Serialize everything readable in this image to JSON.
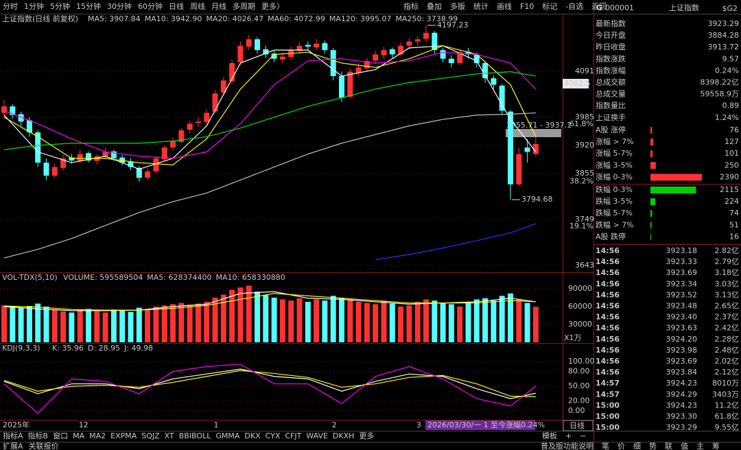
{
  "toolbar": {
    "periods": [
      "分时",
      "1分钟",
      "5分钟",
      "15分钟",
      "30分钟",
      "60分钟",
      "日线",
      "周线",
      "月线",
      "多周期",
      "更多〉"
    ],
    "active": "日线",
    "tools": [
      "指标",
      "叠加",
      "多版",
      "统计",
      "画线",
      "F10",
      "标记",
      "-自选",
      "返回"
    ]
  },
  "chart": {
    "title": "上证指数(日线 前复权)",
    "ma_legend": [
      {
        "label": "MA5: 3907.84",
        "color": "#ffffff"
      },
      {
        "label": "MA10: 3942.90",
        "color": "#ffff00"
      },
      {
        "label": "MA20: 4026.47",
        "color": "#ff00ff"
      },
      {
        "label": "MA60: 4072.99",
        "color": "#00e600"
      },
      {
        "label": "MA120: 3995.07",
        "color": "#c0c0c0"
      },
      {
        "label": "MA250: 3738.99",
        "color": "#3030ff"
      }
    ],
    "ylim": [
      3630,
      4224
    ],
    "yticks": [
      4091,
      3985,
      3920,
      3855,
      3749,
      3643
    ],
    "fib": [
      {
        "value": 3969,
        "label": "61.8%"
      },
      {
        "value": 3837,
        "label": "38.2%"
      },
      {
        "value": 3733,
        "label": "19.1%"
      }
    ],
    "price_tag": 4062.5,
    "range_note": "3955.71 - 3937.1",
    "high_label": 4197.23,
    "low_label": 3794.68,
    "up_color": "#ff3232",
    "down_color": "#54ffff",
    "candles": [
      [
        3995,
        4025,
        3985,
        4010
      ],
      [
        4010,
        4015,
        3982,
        3990
      ],
      [
        3992,
        3998,
        3965,
        3975
      ],
      [
        3978,
        3985,
        3940,
        3950
      ],
      [
        3950,
        3955,
        3870,
        3880
      ],
      [
        3880,
        3890,
        3840,
        3850
      ],
      [
        3850,
        3878,
        3845,
        3870
      ],
      [
        3868,
        3898,
        3862,
        3890
      ],
      [
        3892,
        3900,
        3878,
        3885
      ],
      [
        3884,
        3910,
        3880,
        3900
      ],
      [
        3902,
        3906,
        3880,
        3885
      ],
      [
        3884,
        3900,
        3876,
        3895
      ],
      [
        3893,
        3915,
        3888,
        3905
      ],
      [
        3906,
        3910,
        3884,
        3890
      ],
      [
        3892,
        3898,
        3874,
        3880
      ],
      [
        3882,
        3890,
        3862,
        3870
      ],
      [
        3868,
        3872,
        3836,
        3845
      ],
      [
        3845,
        3868,
        3840,
        3860
      ],
      [
        3860,
        3895,
        3855,
        3890
      ],
      [
        3888,
        3920,
        3884,
        3915
      ],
      [
        3915,
        3938,
        3908,
        3930
      ],
      [
        3928,
        3960,
        3924,
        3955
      ],
      [
        3956,
        3978,
        3948,
        3970
      ],
      [
        3972,
        3985,
        3962,
        3975
      ],
      [
        3974,
        4002,
        3968,
        3995
      ],
      [
        3998,
        4048,
        3994,
        4040
      ],
      [
        4042,
        4078,
        4035,
        4070
      ],
      [
        4068,
        4118,
        4060,
        4110
      ],
      [
        4112,
        4160,
        4105,
        4150
      ],
      [
        4148,
        4175,
        4140,
        4165
      ],
      [
        4165,
        4170,
        4132,
        4140
      ],
      [
        4142,
        4150,
        4122,
        4130
      ],
      [
        4132,
        4138,
        4112,
        4120
      ],
      [
        4118,
        4135,
        4110,
        4125
      ],
      [
        4124,
        4148,
        4118,
        4140
      ],
      [
        4138,
        4158,
        4132,
        4150
      ],
      [
        4152,
        4160,
        4140,
        4148
      ],
      [
        4146,
        4165,
        4140,
        4155
      ],
      [
        4156,
        4162,
        4132,
        4140
      ],
      [
        4140,
        4145,
        4070,
        4080
      ],
      [
        4080,
        4090,
        4020,
        4030
      ],
      [
        4032,
        4098,
        4028,
        4090
      ],
      [
        4088,
        4110,
        4080,
        4100
      ],
      [
        4098,
        4122,
        4090,
        4115
      ],
      [
        4116,
        4138,
        4108,
        4130
      ],
      [
        4128,
        4148,
        4120,
        4140
      ],
      [
        4142,
        4146,
        4122,
        4130
      ],
      [
        4130,
        4158,
        4126,
        4150
      ],
      [
        4150,
        4168,
        4142,
        4160
      ],
      [
        4160,
        4172,
        4150,
        4165
      ],
      [
        4166,
        4197.23,
        4158,
        4180
      ],
      [
        4180,
        4184,
        4132,
        4140
      ],
      [
        4140,
        4145,
        4112,
        4120
      ],
      [
        4120,
        4128,
        4100,
        4110
      ],
      [
        4110,
        4142,
        4105,
        4135
      ],
      [
        4136,
        4145,
        4120,
        4130
      ],
      [
        4130,
        4134,
        4100,
        4110
      ],
      [
        4110,
        4115,
        4065,
        4075
      ],
      [
        4075,
        4082,
        4050,
        4060
      ],
      [
        4058,
        4062,
        3990,
        4000
      ],
      [
        3998,
        4002,
        3794.68,
        3830
      ],
      [
        3830,
        3915,
        3826,
        3900
      ],
      [
        3915,
        3935,
        3880,
        3905
      ],
      [
        3900,
        3940,
        3895,
        3923.29
      ]
    ],
    "line_x": [
      0,
      4,
      8,
      12,
      16,
      20,
      24,
      28,
      32,
      36,
      40,
      44,
      48,
      52,
      56,
      60,
      63
    ],
    "lines": [
      {
        "color": "#ffffff",
        "values": [
          3990,
          3905,
          3880,
          3895,
          3865,
          3890,
          3965,
          4110,
          4140,
          4140,
          4080,
          4095,
          4145,
          4150,
          4115,
          3980,
          3905
        ]
      },
      {
        "color": "#ffff00",
        "values": [
          3985,
          3940,
          3890,
          3890,
          3880,
          3875,
          3935,
          4050,
          4130,
          4135,
          4110,
          4100,
          4120,
          4150,
          4130,
          4060,
          3940
        ]
      },
      {
        "color": "#ff00ff",
        "values": [
          4000,
          3970,
          3935,
          3905,
          3895,
          3890,
          3905,
          3970,
          4060,
          4115,
          4120,
          4110,
          4115,
          4135,
          4130,
          4110,
          4050
        ]
      },
      {
        "color": "#00e600",
        "values": [
          3910,
          3920,
          3925,
          3925,
          3925,
          3930,
          3940,
          3960,
          3985,
          4010,
          4030,
          4050,
          4065,
          4075,
          4085,
          4090,
          4080
        ]
      },
      {
        "color": "#c0c0c0",
        "values": [
          3660,
          3680,
          3705,
          3735,
          3765,
          3790,
          3810,
          3840,
          3870,
          3900,
          3925,
          3945,
          3965,
          3980,
          3990,
          3992,
          3995
        ]
      },
      {
        "color": "#3030ff",
        "values": [
          null,
          null,
          null,
          null,
          null,
          null,
          null,
          null,
          null,
          null,
          null,
          3656,
          3668,
          3683,
          3700,
          3718,
          3739
        ]
      }
    ]
  },
  "volume": {
    "title": "VOL-TDX(5,10)",
    "legend": [
      {
        "label": "VOLUME: 595589504",
        "color": "#ffffff"
      },
      {
        "label": "MA5: 628374400",
        "color": "#ffffff"
      },
      {
        "label": "MA10: 658330880",
        "color": "#ffff00"
      }
    ],
    "ylim": [
      0,
      99000
    ],
    "yticks": [
      90000,
      60000,
      30000
    ],
    "unit": "X1万",
    "values": [
      62000,
      60000,
      58000,
      61000,
      65000,
      60000,
      55000,
      52000,
      50000,
      54000,
      56000,
      52000,
      50000,
      55000,
      53000,
      51000,
      58000,
      54000,
      60000,
      62000,
      64000,
      66000,
      63000,
      65000,
      68000,
      75000,
      80000,
      88000,
      92000,
      95000,
      85000,
      80000,
      75000,
      72000,
      70000,
      74000,
      68000,
      72000,
      70000,
      78000,
      75000,
      72000,
      68000,
      66000,
      64000,
      70000,
      65000,
      60000,
      62000,
      68000,
      72000,
      70000,
      66000,
      64000,
      60000,
      68000,
      72000,
      74000,
      70000,
      78000,
      82000,
      72000,
      66000,
      59559
    ],
    "lines": [
      {
        "color": "#ffffff",
        "values": [
          60000,
          56000,
          53000,
          53000,
          54000,
          60000,
          64000,
          82000,
          85000,
          74000,
          72000,
          68000,
          64000,
          66000,
          68000,
          74000,
          68000
        ]
      },
      {
        "color": "#ffff00",
        "values": [
          61000,
          59000,
          55000,
          54000,
          54000,
          57000,
          62000,
          72000,
          82000,
          78000,
          74000,
          70000,
          66000,
          66000,
          66000,
          70000,
          68000
        ]
      }
    ]
  },
  "kdj": {
    "title": "KDJ(9,3,3)",
    "legend": [
      {
        "label": "K: 35.96",
        "color": "#ffffff"
      },
      {
        "label": "D: 28.95",
        "color": "#ffff00"
      },
      {
        "label": "J: 49.98",
        "color": "#ff00ff"
      }
    ],
    "ylim": [
      -18,
      117
    ],
    "yticks": [
      {
        "value": 100,
        "label": "100.00"
      },
      {
        "value": 80,
        "label": "80.00"
      },
      {
        "value": 50,
        "label": "50.00"
      },
      {
        "value": 20,
        "label": "20.00"
      },
      {
        "value": 0,
        "label": "0.00"
      }
    ],
    "lines": [
      {
        "color": "#ffffff",
        "values": [
          60,
          35,
          55,
          55,
          45,
          65,
          75,
          85,
          70,
          65,
          40,
          60,
          75,
          70,
          45,
          25,
          35.96
        ]
      },
      {
        "color": "#ffff00",
        "values": [
          62,
          40,
          50,
          52,
          48,
          58,
          70,
          82,
          76,
          68,
          48,
          55,
          68,
          72,
          55,
          30,
          28.95
        ]
      },
      {
        "color": "#ff00ff",
        "values": [
          55,
          -5,
          65,
          60,
          35,
          80,
          90,
          95,
          55,
          55,
          15,
          70,
          90,
          65,
          25,
          10,
          49.98
        ]
      }
    ]
  },
  "xaxis": {
    "labels": [
      {
        "at": 0,
        "label": "2025年"
      },
      {
        "at": 9,
        "label": "12"
      },
      {
        "at": 25,
        "label": "1"
      },
      {
        "at": 39,
        "label": "2"
      },
      {
        "at": 49,
        "label": "3"
      }
    ],
    "status": "2026/03/30/一 1 至今涨幅0.24%",
    "period": "日线"
  },
  "quote": {
    "flag": "G",
    "code": "000001",
    "name": "上证指数",
    "tag": "$G2",
    "rows": [
      {
        "label": "最新指数",
        "value": "3923.29",
        "color": "#ff3232"
      },
      {
        "label": "今日开盘",
        "value": "3884.28",
        "color": "#ff3232"
      },
      {
        "label": "昨日收盘",
        "value": "3913.72",
        "color": "#e0e0e0"
      },
      {
        "label": "指数涨跌",
        "value": "9.57",
        "color": "#ff3232"
      },
      {
        "label": "指数涨幅",
        "value": "0.24%",
        "color": "#ff3232"
      },
      {
        "label": "总成交额",
        "value": "8398.22亿",
        "color": "#e6d200"
      },
      {
        "label": "总成交量",
        "value": "59558.9万",
        "color": "#e6d200"
      },
      {
        "label": "指数量比",
        "value": "0.89",
        "color": "#e6d200"
      },
      {
        "label": "上证换手",
        "value": "1.24%",
        "color": "#e0e0e0"
      }
    ]
  },
  "breadth": [
    {
      "label": "A股 涨停",
      "value": 76,
      "color": "#ff3232"
    },
    {
      "label": "涨幅 > 7%",
      "value": 127,
      "color": "#ff3232"
    },
    {
      "label": "涨幅 5-7%",
      "value": 101,
      "color": "#ff3232"
    },
    {
      "label": "涨幅 3-5%",
      "value": 250,
      "color": "#ff3232"
    },
    {
      "label": "涨幅 0-3%",
      "value": 2390,
      "color": "#ff3232"
    },
    {
      "label": "跌幅 0-3%",
      "value": 2115,
      "color": "#00d000"
    },
    {
      "label": "跌幅 3-5%",
      "value": 224,
      "color": "#00d000"
    },
    {
      "label": "跌幅 5-7%",
      "value": 74,
      "color": "#00d000"
    },
    {
      "label": "跌幅 > 7%",
      "value": 51,
      "color": "#00d000"
    },
    {
      "label": "A股 跌停",
      "value": 16,
      "color": "#00d000"
    }
  ],
  "trades": [
    [
      "14:56",
      "3923.18",
      "2.82亿"
    ],
    [
      "14:56",
      "3923.33",
      "2.79亿"
    ],
    [
      "14:56",
      "3923.69",
      "3.18亿"
    ],
    [
      "14:56",
      "3923.34",
      "3.03亿"
    ],
    [
      "14:56",
      "3923.52",
      "3.13亿"
    ],
    [
      "14:56",
      "3923.48",
      "2.65亿"
    ],
    [
      "14:56",
      "3923.40",
      "2.37亿"
    ],
    [
      "14:56",
      "3923.63",
      "2.42亿"
    ],
    [
      "14:56",
      "3924.20",
      "2.28亿"
    ],
    [
      "14:56",
      "3923.98",
      "2.48亿"
    ],
    [
      "14:56",
      "3923.69",
      "2.02亿"
    ],
    [
      "14:56",
      "3923.84",
      "2.12亿"
    ],
    [
      "14:57",
      "3924.23",
      "8010万"
    ],
    [
      "14:57",
      "3924.29",
      "3403万"
    ],
    [
      "15:00",
      "3924.23",
      "11.2亿"
    ],
    [
      "15:00",
      "3923.30",
      "61.8亿"
    ],
    [
      "15:00",
      "3923.29",
      "9.55亿"
    ]
  ],
  "bottom_bar": {
    "items": [
      "指标A",
      "指标B",
      "窗口",
      "MA",
      "MA2",
      "EXPMA",
      "SQJZ",
      "XT",
      "BBIBOLL",
      "GMMA",
      "DKX",
      "CYX",
      "CFJT",
      "WAVE",
      "DKXH",
      "更多"
    ],
    "active": "MA2",
    "right": [
      "模板",
      "+",
      "−"
    ]
  },
  "footer": {
    "left": [
      "扩展A",
      "关联报价"
    ],
    "right": [
      "普及版功能说明",
      "笔",
      "价",
      "细",
      "势",
      "联",
      "值",
      "主",
      "筹"
    ]
  }
}
